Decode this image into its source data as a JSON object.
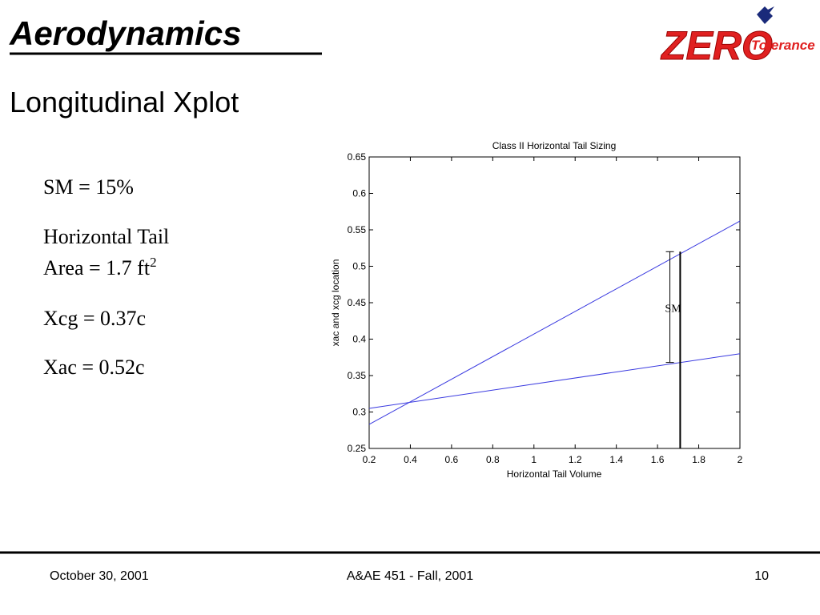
{
  "header": {
    "title": "Aerodynamics",
    "subtitle": "Longitudinal Xplot",
    "logo": {
      "word": "ZERO",
      "tagline": "Tolerance"
    }
  },
  "body": {
    "items": [
      "SM = 15%",
      {
        "line1": "Horizontal Tail",
        "line2": "Area = 1.7 ft",
        "sup": "2"
      },
      "Xcg = 0.37c",
      "Xac = 0.52c"
    ]
  },
  "chart_data": {
    "type": "line",
    "title": "Class II Horizontal Tail Sizing",
    "x_label": "Horizontal Tail Volume",
    "y_label": "xac and xcg location",
    "xlim": [
      0.2,
      2
    ],
    "ylim": [
      0.25,
      0.65
    ],
    "xticks": [
      0.2,
      0.4,
      0.6,
      0.8,
      1,
      1.2,
      1.4,
      1.6,
      1.8,
      2
    ],
    "yticks": [
      0.25,
      0.3,
      0.35,
      0.4,
      0.45,
      0.5,
      0.55,
      0.6,
      0.65
    ],
    "series": [
      {
        "color": "#3a3ae0",
        "x": [
          0.2,
          2
        ],
        "values": [
          0.283,
          0.562
        ]
      },
      {
        "color": "#3a3ae0",
        "x": [
          0.2,
          2
        ],
        "values": [
          0.305,
          0.38
        ]
      },
      {
        "color": "#000000",
        "x": [
          1.71,
          1.71
        ],
        "values": [
          0.25,
          0.52
        ]
      },
      {
        "color": "#000000",
        "x": [
          1.66,
          1.66
        ],
        "values": [
          0.368,
          0.52
        ]
      }
    ],
    "annotation": "SM"
  },
  "footer": {
    "date": "October 30, 2001",
    "course": "A&AE 451 - Fall, 2001",
    "page": "10"
  }
}
